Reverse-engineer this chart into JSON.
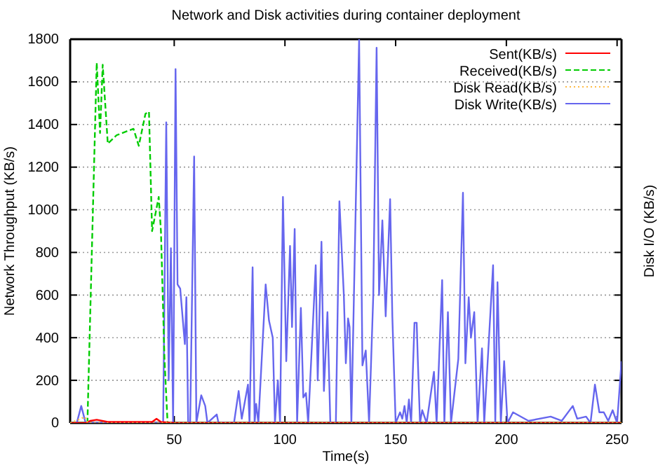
{
  "chart_data": {
    "type": "line",
    "title": "Network and Disk activities during container deployment",
    "xlabel": "Time(s)",
    "ylabel": "Network Throughput (KB/s)",
    "y2label": "Disk I/O (KB/s)",
    "xlim": [
      3,
      252
    ],
    "xticks": [
      50,
      100,
      150,
      200,
      250
    ],
    "ylim": [
      0,
      1800
    ],
    "yticks": [
      0,
      200,
      400,
      600,
      800,
      1000,
      1200,
      1400,
      1600,
      1800
    ],
    "grid": "y",
    "legend": "top right",
    "marker": "none",
    "series": [
      {
        "name": "Sent(KB/s)",
        "color": "#ff0000",
        "line_style": "solid",
        "x": [
          3,
          10,
          12,
          15,
          20,
          30,
          40,
          42,
          44,
          50,
          100,
          150,
          200,
          252
        ],
        "values": [
          0,
          0,
          10,
          15,
          5,
          5,
          5,
          20,
          5,
          0,
          0,
          0,
          0,
          0
        ]
      },
      {
        "name": "Received(KB/s)",
        "color": "#00cc00",
        "line_style": "dashed",
        "x": [
          3,
          10.8,
          15,
          16.5,
          17.7,
          20,
          24,
          31.6,
          34,
          37,
          38.6,
          40,
          43,
          44,
          45.6,
          47,
          100,
          252
        ],
        "values": [
          0,
          0,
          1690,
          1360,
          1680,
          1310,
          1350,
          1380,
          1300,
          1450,
          1460,
          900,
          1060,
          900,
          300,
          0,
          0,
          0
        ]
      },
      {
        "name": "Disk Read(KB/s)",
        "color": "#ffbb44",
        "line_style": "dotted",
        "x": [
          3,
          8,
          9.5,
          11,
          50,
          100,
          150,
          200,
          252
        ],
        "values": [
          0,
          20,
          30,
          0,
          0,
          0,
          0,
          0,
          0
        ]
      },
      {
        "name": "Disk Write(KB/s)",
        "color": "#6666ee",
        "line_style": "solid",
        "x": [
          3,
          6,
          8,
          10,
          45,
          46.4,
          47.5,
          48.5,
          49.5,
          50.6,
          51.5,
          52.7,
          54.8,
          55.5,
          56.3,
          57.2,
          59,
          60,
          62.2,
          64,
          65,
          69.2,
          70,
          77,
          79.1,
          80.5,
          83.3,
          84,
          85.4,
          86.3,
          87,
          88,
          91.3,
          92.8,
          94.5,
          95.5,
          96.8,
          97.8,
          99.1,
          100.6,
          102.3,
          103.2,
          104.4,
          105.5,
          107.2,
          108.3,
          109.5,
          110.5,
          113.9,
          114.8,
          116.5,
          117.6,
          119.2,
          120.5,
          123,
          124.6,
          126.6,
          127.5,
          128.5,
          129.2,
          130,
          133.5,
          135,
          136.5,
          138,
          139.9,
          141.4,
          142.5,
          144,
          145.5,
          147.5,
          148.5,
          150,
          152,
          153,
          154,
          155,
          156,
          157,
          158.5,
          159.5,
          160,
          161,
          162,
          164,
          167.3,
          168.5,
          171,
          172,
          173.6,
          175,
          178.3,
          180.4,
          181.5,
          183,
          184,
          185.5,
          187,
          189,
          190,
          194,
          195,
          196,
          197.5,
          199,
          200.5,
          203,
          210,
          220,
          225,
          230,
          232,
          236,
          238,
          240,
          242,
          244,
          246,
          248,
          250,
          252
        ],
        "values": [
          0,
          0,
          80,
          0,
          0,
          1410,
          200,
          820,
          0,
          1660,
          650,
          630,
          370,
          590,
          0,
          0,
          1250,
          0,
          130,
          80,
          0,
          40,
          0,
          0,
          150,
          20,
          180,
          0,
          730,
          0,
          90,
          0,
          650,
          480,
          400,
          0,
          200,
          0,
          1060,
          290,
          830,
          450,
          910,
          0,
          540,
          120,
          140,
          0,
          740,
          200,
          850,
          150,
          520,
          0,
          0,
          1040,
          600,
          280,
          490,
          450,
          0,
          1800,
          270,
          340,
          0,
          600,
          1760,
          600,
          950,
          500,
          1050,
          500,
          0,
          50,
          20,
          80,
          0,
          110,
          0,
          470,
          470,
          300,
          0,
          60,
          0,
          240,
          0,
          670,
          0,
          520,
          0,
          300,
          1080,
          280,
          590,
          400,
          520,
          0,
          350,
          0,
          740,
          0,
          660,
          0,
          290,
          0,
          50,
          10,
          30,
          10,
          80,
          20,
          30,
          0,
          180,
          50,
          50,
          10,
          60,
          0,
          290
        ]
      }
    ]
  }
}
